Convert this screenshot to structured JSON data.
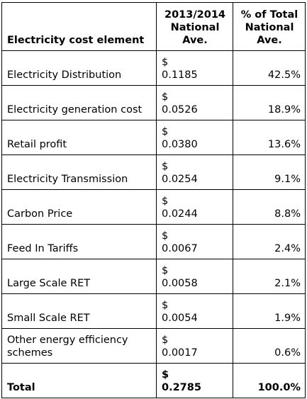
{
  "table": {
    "headers": {
      "element": "Electricity cost element",
      "ave": "2013/2014 National Ave.",
      "pct": "% of Total National Ave."
    },
    "rows": [
      {
        "element": "Electricity Distribution",
        "currency": "$",
        "amount": "0.1185",
        "pct": "42.5%"
      },
      {
        "element": "Electricity generation cost",
        "currency": "$",
        "amount": "0.0526",
        "pct": "18.9%"
      },
      {
        "element": "Retail profit",
        "currency": "$",
        "amount": "0.0380",
        "pct": "13.6%"
      },
      {
        "element": "Electricity Transmission",
        "currency": "$",
        "amount": "0.0254",
        "pct": "9.1%"
      },
      {
        "element": "Carbon Price",
        "currency": "$",
        "amount": "0.0244",
        "pct": "8.8%"
      },
      {
        "element": "Feed In Tariffs",
        "currency": "$",
        "amount": "0.0067",
        "pct": "2.4%"
      },
      {
        "element": "Large Scale RET",
        "currency": "$",
        "amount": "0.0058",
        "pct": "2.1%"
      },
      {
        "element": "Small Scale RET",
        "currency": "$",
        "amount": "0.0054",
        "pct": "1.9%"
      },
      {
        "element": "Other energy efficiency schemes",
        "currency": "$",
        "amount": "0.0017",
        "pct": "0.6%"
      }
    ],
    "total": {
      "element": "Total",
      "currency": "$",
      "amount": "0.2785",
      "pct": "100.0%"
    }
  }
}
